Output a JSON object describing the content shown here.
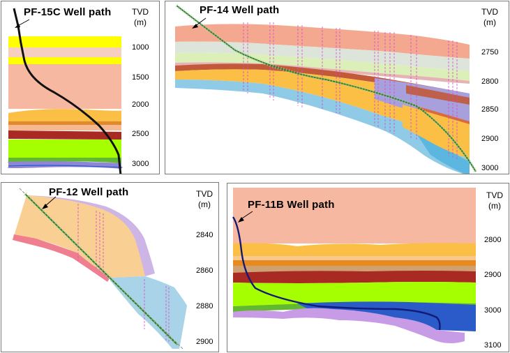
{
  "panels": [
    {
      "id": "pf15c",
      "title": "PF-15C Well path",
      "axis_label": "TVD",
      "axis_unit": "(m)",
      "ticks": [
        "1000",
        "1500",
        "2000",
        "2500",
        "3000"
      ]
    },
    {
      "id": "pf14",
      "title": "PF-14 Well path",
      "axis_label": "TVD",
      "axis_unit": "(m)",
      "ticks": [
        "2750",
        "2800",
        "2850",
        "2900",
        "3000"
      ]
    },
    {
      "id": "pf12",
      "title": "PF-12 Well path",
      "axis_label": "TVD",
      "axis_unit": "(m)",
      "ticks": [
        "2840",
        "2860",
        "2880",
        "2900"
      ]
    },
    {
      "id": "pf11b",
      "title": "PF-11B Well path",
      "axis_label": "TVD",
      "axis_unit": "(m)",
      "ticks": [
        "2800",
        "2900",
        "3000",
        "3100"
      ]
    }
  ],
  "colors": {
    "salmon": "#f6b8a0",
    "yellow": "#ffff00",
    "orange": "#fbbf46",
    "dark_red": "#a82a22",
    "lime": "#a6ff00",
    "green": "#62b82f",
    "purple": "#b89be0",
    "blue": "#2a5bc8",
    "light_blue": "#8fcbe6",
    "well_black": "#111111",
    "well_navy": "#141a78",
    "well_green": "#3c7a3c"
  }
}
